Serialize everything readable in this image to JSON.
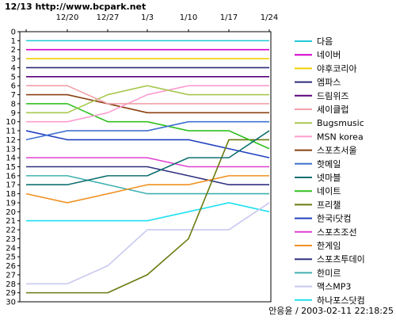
{
  "watermark": "12/13 http://www.bcpark.net",
  "credit": "안응윤 / 2003-02-11 22:18:25",
  "chart_data": {
    "type": "line",
    "x": [
      "12/13",
      "12/20",
      "12/27",
      "1/3",
      "1/10",
      "1/17",
      "1/24"
    ],
    "y_ticks": [
      "0",
      "1",
      "2",
      "3",
      "4",
      "5",
      "6",
      "7",
      "8",
      "9",
      "10",
      "11",
      "12",
      "13",
      "14",
      "15",
      "16",
      "17",
      "18",
      "19",
      "20",
      "21",
      "22",
      "23",
      "24",
      "25",
      "26",
      "27",
      "28",
      "29",
      "30"
    ],
    "ylim": [
      0,
      30
    ],
    "y_inverted": true,
    "grid": false,
    "legend_position": "right",
    "series": [
      {
        "name": "다음",
        "color": "#21c9d6",
        "values": [
          1,
          1,
          1,
          1,
          1,
          1,
          1
        ]
      },
      {
        "name": "네이버",
        "color": "#d400ce",
        "values": [
          2,
          2,
          2,
          2,
          2,
          2,
          2
        ]
      },
      {
        "name": "야후코리아",
        "color": "#f0d000",
        "values": [
          3,
          3,
          3,
          3,
          3,
          3,
          3
        ]
      },
      {
        "name": "엠파스",
        "color": "#2a2a7a",
        "values": [
          4,
          4,
          4,
          4,
          4,
          4,
          4
        ]
      },
      {
        "name": "드림위즈",
        "color": "#5a007a",
        "values": [
          5,
          5,
          5,
          5,
          5,
          5,
          5
        ]
      },
      {
        "name": "세이클럽",
        "color": "#f0a0a8",
        "values": [
          6,
          6,
          8,
          8,
          8,
          8,
          8
        ]
      },
      {
        "name": "Bugsmusic",
        "color": "#a8c850",
        "values": [
          9,
          9,
          7,
          6,
          7,
          7,
          7
        ]
      },
      {
        "name": "MSN korea",
        "color": "#ff9cd0",
        "values": [
          10,
          10,
          9,
          7,
          6,
          6,
          6
        ]
      },
      {
        "name": "스포츠서울",
        "color": "#8a4010",
        "values": [
          7,
          7,
          8,
          9,
          9,
          9,
          9
        ]
      },
      {
        "name": "핫메일",
        "color": "#4070d0",
        "values": [
          12,
          11,
          11,
          11,
          10,
          10,
          10
        ]
      },
      {
        "name": "넷마블",
        "color": "#107070",
        "values": [
          17,
          17,
          16,
          16,
          14,
          14,
          11
        ]
      },
      {
        "name": "네이트",
        "color": "#30c020",
        "values": [
          8,
          8,
          10,
          10,
          11,
          11,
          13
        ]
      },
      {
        "name": "프리챌",
        "color": "#6a7a10",
        "values": [
          29,
          29,
          29,
          27,
          23,
          12,
          12
        ]
      },
      {
        "name": "한국i닷컴",
        "color": "#2040c0",
        "values": [
          11,
          12,
          12,
          12,
          12,
          13,
          14
        ]
      },
      {
        "name": "스포츠조선",
        "color": "#e040d0",
        "values": [
          14,
          14,
          14,
          14,
          15,
          15,
          15
        ]
      },
      {
        "name": "한게임",
        "color": "#f09020",
        "values": [
          18,
          19,
          18,
          17,
          17,
          16,
          16
        ]
      },
      {
        "name": "스포츠투데이",
        "color": "#303080",
        "values": [
          15,
          15,
          15,
          15,
          16,
          17,
          17
        ]
      },
      {
        "name": "한미르",
        "color": "#40b0b0",
        "values": [
          16,
          16,
          17,
          18,
          18,
          18,
          18
        ]
      },
      {
        "name": "맥스MP3",
        "color": "#c8c8f0",
        "values": [
          28,
          28,
          26,
          22,
          22,
          22,
          19
        ]
      },
      {
        "name": "하나포스닷컴",
        "color": "#20e0f0",
        "values": [
          21,
          21,
          21,
          21,
          20,
          19,
          20
        ]
      }
    ]
  }
}
